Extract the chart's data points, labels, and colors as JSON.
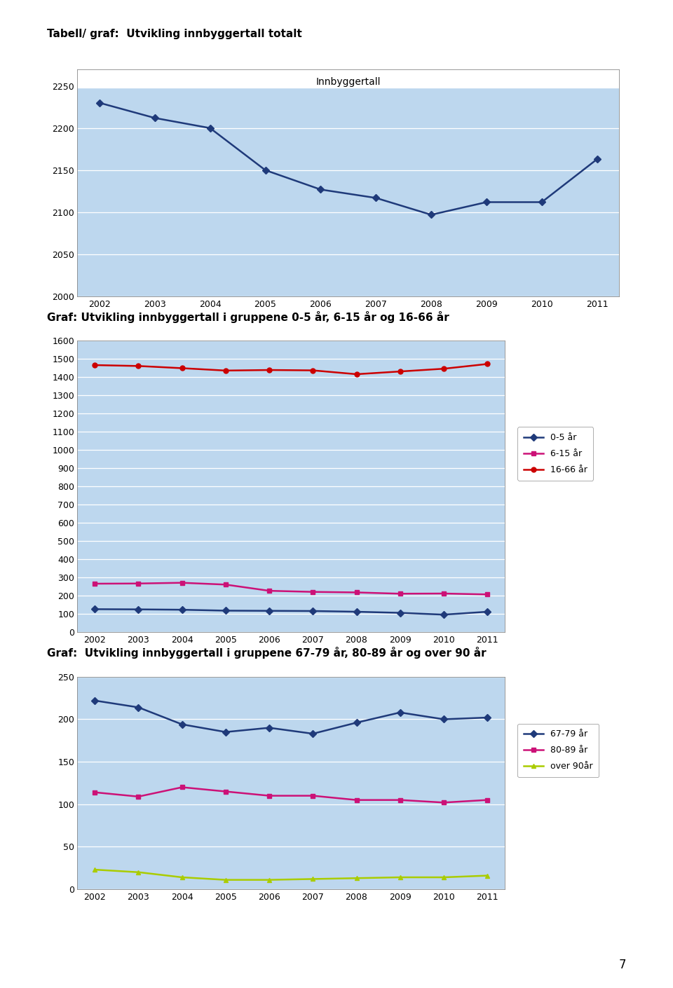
{
  "years": [
    2002,
    2003,
    2004,
    2005,
    2006,
    2007,
    2008,
    2009,
    2010,
    2011
  ],
  "chart1_title": "Tabell/ graf:  Utvikling innbyggertall totalt",
  "chart1_legend": "Innbyggertall",
  "chart1_data": [
    2230,
    2212,
    2200,
    2150,
    2127,
    2117,
    2097,
    2112,
    2112,
    2163
  ],
  "chart1_ylim": [
    2000,
    2270
  ],
  "chart1_yticks": [
    2000,
    2050,
    2100,
    2150,
    2200,
    2250
  ],
  "chart1_color": "#1F3A7A",
  "chart2_title": "Graf: Utvikling innbyggertall i gruppene 0-5 år, 6-15 år og 16-66 år",
  "chart2_ylim": [
    0,
    1600
  ],
  "chart2_yticks": [
    0,
    100,
    200,
    300,
    400,
    500,
    600,
    700,
    800,
    900,
    1000,
    1100,
    1200,
    1300,
    1400,
    1500,
    1600
  ],
  "chart2_series": {
    "0-5 år": {
      "data": [
        127,
        126,
        124,
        119,
        118,
        117,
        113,
        107,
        97,
        113
      ],
      "color": "#1F3A7A",
      "marker": "D"
    },
    "6-15 år": {
      "data": [
        267,
        268,
        272,
        262,
        228,
        222,
        219,
        212,
        213,
        208
      ],
      "color": "#CC1177",
      "marker": "s"
    },
    "16-66 år": {
      "data": [
        1467,
        1462,
        1450,
        1437,
        1440,
        1438,
        1417,
        1432,
        1447,
        1473
      ],
      "color": "#CC0000",
      "marker": "o"
    }
  },
  "chart3_title": "Graf:  Utvikling innbyggertall i gruppene 67-79 år, 80-89 år og over 90 år",
  "chart3_ylim": [
    0,
    250
  ],
  "chart3_yticks": [
    0,
    50,
    100,
    150,
    200,
    250
  ],
  "chart3_series": {
    "67-79 år": {
      "data": [
        222,
        214,
        194,
        185,
        190,
        183,
        196,
        208,
        200,
        202
      ],
      "color": "#1F3A7A",
      "marker": "D"
    },
    "80-89 år": {
      "data": [
        114,
        109,
        120,
        115,
        110,
        110,
        105,
        105,
        102,
        105
      ],
      "color": "#CC1177",
      "marker": "s"
    },
    "over 90år": {
      "data": [
        23,
        20,
        14,
        11,
        11,
        12,
        13,
        14,
        14,
        16
      ],
      "color": "#AACC00",
      "marker": "^"
    }
  },
  "plot_area_color": "#BDD7EE",
  "grid_color": "#FFFFFF",
  "spine_color": "#888888"
}
